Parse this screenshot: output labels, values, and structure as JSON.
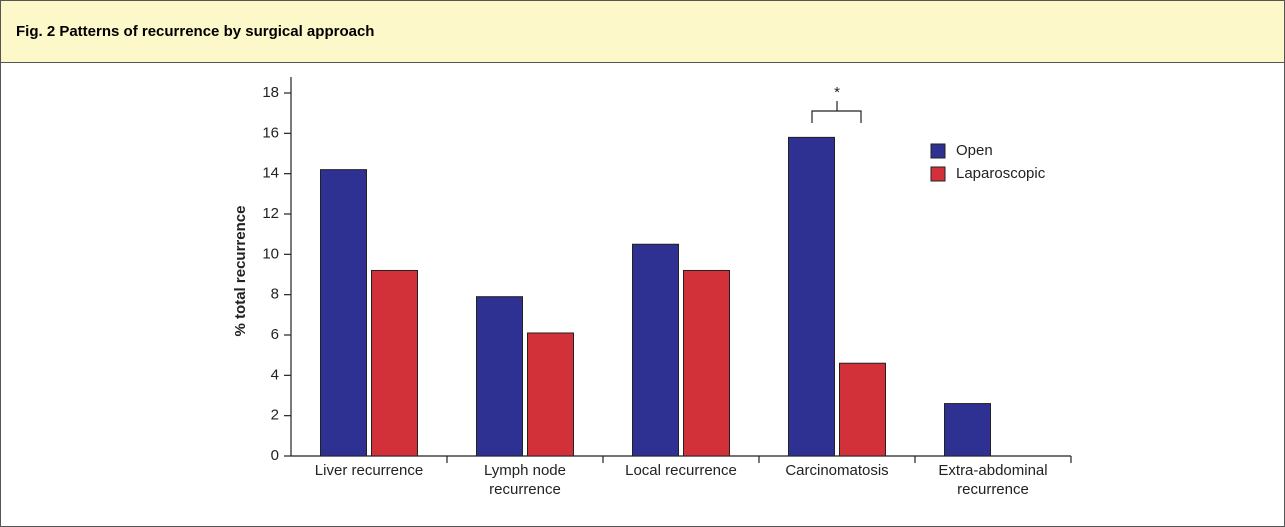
{
  "chart_data": {
    "type": "bar",
    "title": "Fig. 2 Patterns of recurrence by surgical approach",
    "ylabel": "% total recurrence",
    "categories": [
      "Liver recurrence",
      "Lymph node recurrence",
      "Local recurrence",
      "Carcinomatosis",
      "Extra-abdominal recurrence"
    ],
    "series": [
      {
        "name": "Open",
        "color": "#2e3192",
        "values": [
          14.2,
          7.9,
          10.5,
          15.8,
          2.6
        ]
      },
      {
        "name": "Laparoscopic",
        "color": "#d2313a",
        "values": [
          9.2,
          6.1,
          9.2,
          4.6,
          0
        ]
      }
    ],
    "ylim": [
      0,
      18
    ],
    "yticks": [
      0,
      2,
      4,
      6,
      8,
      10,
      12,
      14,
      16,
      18
    ],
    "annotation": "*",
    "legend": "upper right"
  }
}
